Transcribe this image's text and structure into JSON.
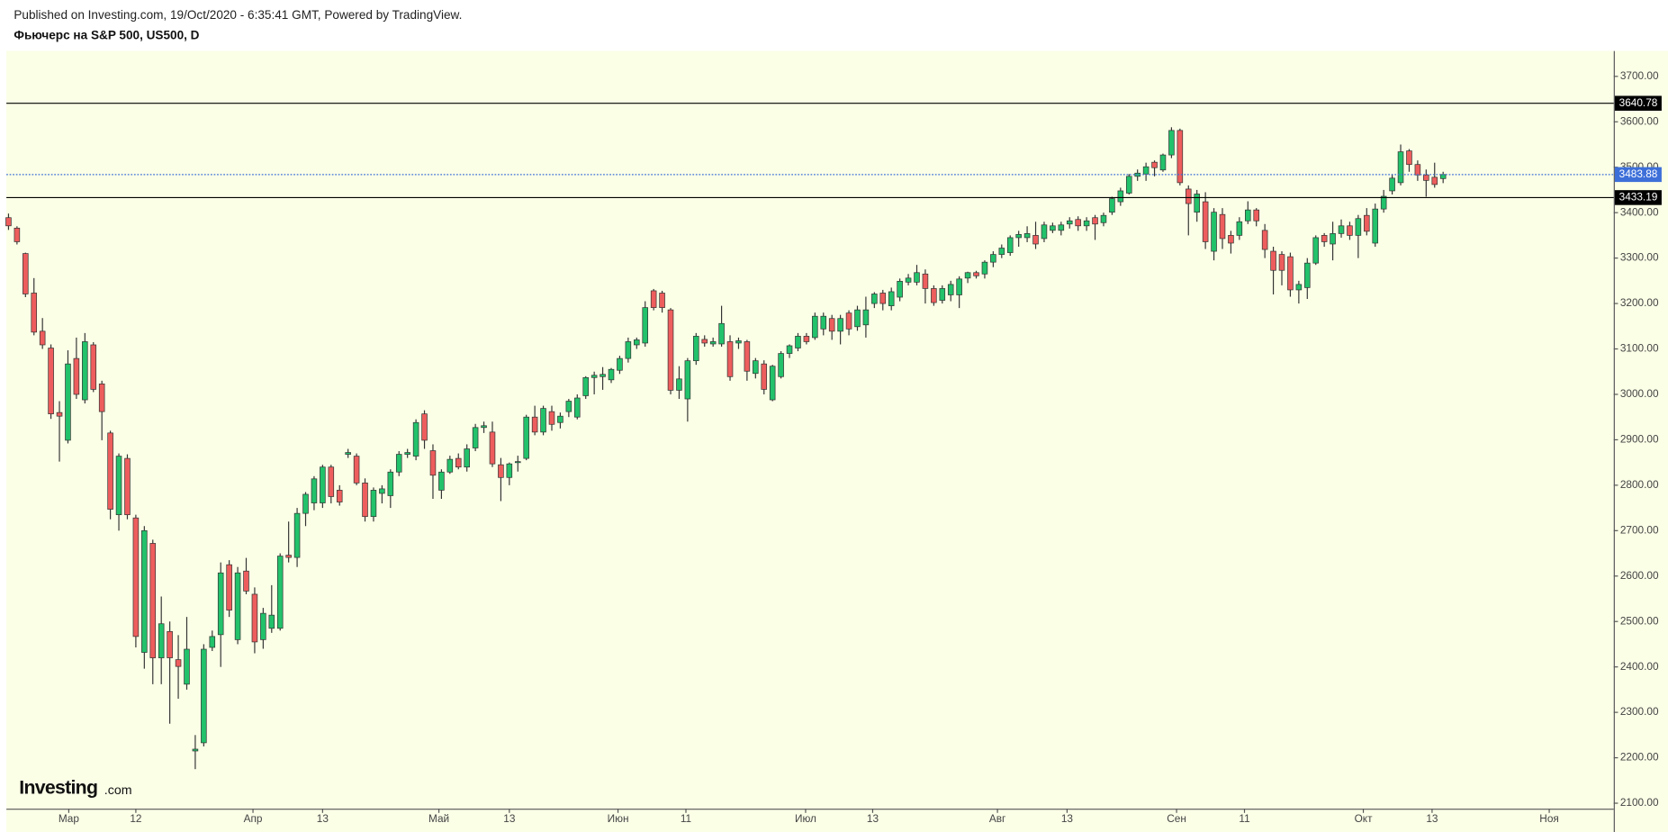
{
  "header": {
    "published": "Published on Investing.com, 19/Oct/2020 - 6:35:41 GMT, Powered by TradingView.",
    "symbol": "Фьючерс на S&P 500, US500, D"
  },
  "logo": {
    "name": "Investing",
    "suffix": ".com"
  },
  "chart_data": {
    "type": "candlestick",
    "up_color": "#22c26b",
    "down_color": "#ee5d5d",
    "ylim": [
      2088,
      3756
    ],
    "yticks": [
      {
        "value": 2100,
        "label": "2100.00"
      },
      {
        "value": 2200,
        "label": "2200.00"
      },
      {
        "value": 2300,
        "label": "2300.00"
      },
      {
        "value": 2400,
        "label": "2400.00"
      },
      {
        "value": 2500,
        "label": "2500.00"
      },
      {
        "value": 2600,
        "label": "2600.00"
      },
      {
        "value": 2700,
        "label": "2700.00"
      },
      {
        "value": 2800,
        "label": "2800.00"
      },
      {
        "value": 2900,
        "label": "2900.00"
      },
      {
        "value": 3000,
        "label": "3000.00"
      },
      {
        "value": 3100,
        "label": "3100.00"
      },
      {
        "value": 3200,
        "label": "3200.00"
      },
      {
        "value": 3300,
        "label": "3300.00"
      },
      {
        "value": 3400,
        "label": "3400.00"
      },
      {
        "value": 3500,
        "label": "3500.00"
      },
      {
        "value": 3600,
        "label": "3600.00"
      },
      {
        "value": 3700,
        "label": "3700.00"
      }
    ],
    "xlim": [
      -0.25,
      189.1
    ],
    "xticks": [
      {
        "value": 7.1,
        "label": "Мар"
      },
      {
        "value": 15,
        "label": "12"
      },
      {
        "value": 28.8,
        "label": "Апр"
      },
      {
        "value": 37,
        "label": "13"
      },
      {
        "value": 50.7,
        "label": "Май"
      },
      {
        "value": 59,
        "label": "13"
      },
      {
        "value": 71.8,
        "label": "Июн"
      },
      {
        "value": 79.8,
        "label": "11"
      },
      {
        "value": 93.9,
        "label": "Июл"
      },
      {
        "value": 101.8,
        "label": "13"
      },
      {
        "value": 116.5,
        "label": "Авг"
      },
      {
        "value": 124.7,
        "label": "13"
      },
      {
        "value": 137.6,
        "label": "Сен"
      },
      {
        "value": 145.6,
        "label": "11"
      },
      {
        "value": 159.6,
        "label": "Окт"
      },
      {
        "value": 167.7,
        "label": "13"
      },
      {
        "value": 181.5,
        "label": "Ноя"
      }
    ],
    "hlines": [
      {
        "value": 3640.78,
        "color": "#000000",
        "style": "solid"
      },
      {
        "value": 3433.19,
        "color": "#000000",
        "style": "solid"
      },
      {
        "value": 3483.88,
        "color": "#3d6fd9",
        "style": "dotted"
      }
    ],
    "ohlc": [
      [
        3389,
        3398,
        3362,
        3371
      ],
      [
        3366,
        3370,
        3330,
        3336
      ],
      [
        3310,
        3312,
        3214,
        3221
      ],
      [
        3223,
        3256,
        3130,
        3137
      ],
      [
        3139,
        3168,
        3100,
        3109
      ],
      [
        3102,
        3110,
        2946,
        2957
      ],
      [
        2960,
        2985,
        2852,
        2952
      ],
      [
        2899,
        3097,
        2892,
        3067
      ],
      [
        3079,
        3125,
        2990,
        3000
      ],
      [
        2988,
        3135,
        2980,
        3116
      ],
      [
        3109,
        3115,
        3005,
        3011
      ],
      [
        3023,
        3030,
        2899,
        2962
      ],
      [
        2915,
        2920,
        2725,
        2747
      ],
      [
        2735,
        2870,
        2700,
        2864
      ],
      [
        2859,
        2868,
        2725,
        2735
      ],
      [
        2728,
        2735,
        2443,
        2467
      ],
      [
        2432,
        2710,
        2396,
        2700
      ],
      [
        2672,
        2680,
        2362,
        2420
      ],
      [
        2420,
        2555,
        2362,
        2495
      ],
      [
        2478,
        2500,
        2275,
        2420
      ],
      [
        2416,
        2470,
        2330,
        2401
      ],
      [
        2362,
        2510,
        2350,
        2439
      ],
      [
        2215,
        2250,
        2175,
        2219
      ],
      [
        2233,
        2450,
        2225,
        2439
      ],
      [
        2443,
        2480,
        2435,
        2467
      ],
      [
        2471,
        2630,
        2400,
        2607
      ],
      [
        2625,
        2635,
        2510,
        2525
      ],
      [
        2460,
        2620,
        2450,
        2607
      ],
      [
        2611,
        2640,
        2560,
        2567
      ],
      [
        2560,
        2575,
        2430,
        2455
      ],
      [
        2460,
        2530,
        2440,
        2518
      ],
      [
        2485,
        2580,
        2475,
        2514
      ],
      [
        2485,
        2650,
        2480,
        2644
      ],
      [
        2646,
        2720,
        2630,
        2641
      ],
      [
        2641,
        2750,
        2620,
        2738
      ],
      [
        2738,
        2785,
        2710,
        2780
      ],
      [
        2761,
        2820,
        2745,
        2814
      ],
      [
        2761,
        2845,
        2750,
        2840
      ],
      [
        2840,
        2845,
        2760,
        2775
      ],
      [
        2789,
        2800,
        2755,
        2763
      ],
      [
        2868,
        2880,
        2860,
        2872
      ],
      [
        2864,
        2870,
        2800,
        2805
      ],
      [
        2805,
        2815,
        2720,
        2731
      ],
      [
        2731,
        2795,
        2720,
        2789
      ],
      [
        2782,
        2800,
        2760,
        2792
      ],
      [
        2777,
        2835,
        2750,
        2829
      ],
      [
        2829,
        2875,
        2820,
        2868
      ],
      [
        2868,
        2880,
        2860,
        2872
      ],
      [
        2864,
        2945,
        2855,
        2938
      ],
      [
        2957,
        2965,
        2880,
        2899
      ],
      [
        2876,
        2890,
        2770,
        2822
      ],
      [
        2789,
        2835,
        2770,
        2829
      ],
      [
        2829,
        2865,
        2825,
        2857
      ],
      [
        2859,
        2870,
        2835,
        2840
      ],
      [
        2840,
        2890,
        2830,
        2880
      ],
      [
        2882,
        2935,
        2875,
        2927
      ],
      [
        2927,
        2940,
        2915,
        2931
      ],
      [
        2917,
        2940,
        2840,
        2847
      ],
      [
        2845,
        2860,
        2765,
        2817
      ],
      [
        2817,
        2850,
        2800,
        2847
      ],
      [
        2850,
        2865,
        2830,
        2852
      ],
      [
        2859,
        2955,
        2855,
        2950
      ],
      [
        2950,
        2975,
        2910,
        2917
      ],
      [
        2917,
        2975,
        2910,
        2969
      ],
      [
        2962,
        2975,
        2920,
        2934
      ],
      [
        2938,
        2960,
        2925,
        2952
      ],
      [
        2962,
        2990,
        2950,
        2985
      ],
      [
        2950,
        3000,
        2945,
        2992
      ],
      [
        2997,
        3040,
        2990,
        3037
      ],
      [
        3037,
        3050,
        3000,
        3042
      ],
      [
        3039,
        3060,
        3010,
        3044
      ],
      [
        3032,
        3058,
        3025,
        3055
      ],
      [
        3053,
        3085,
        3045,
        3079
      ],
      [
        3079,
        3125,
        3070,
        3116
      ],
      [
        3109,
        3125,
        3100,
        3120
      ],
      [
        3113,
        3205,
        3105,
        3191
      ],
      [
        3228,
        3232,
        3185,
        3191
      ],
      [
        3223,
        3228,
        3180,
        3191
      ],
      [
        3186,
        3190,
        3000,
        3009
      ],
      [
        3009,
        3062,
        2990,
        3034
      ],
      [
        2990,
        3080,
        2940,
        3074
      ],
      [
        3074,
        3135,
        3065,
        3128
      ],
      [
        3121,
        3130,
        3105,
        3113
      ],
      [
        3111,
        3125,
        3105,
        3116
      ],
      [
        3111,
        3195,
        3105,
        3156
      ],
      [
        3116,
        3130,
        3030,
        3039
      ],
      [
        3113,
        3125,
        3100,
        3118
      ],
      [
        3116,
        3120,
        3030,
        3051
      ],
      [
        3046,
        3080,
        3035,
        3074
      ],
      [
        3067,
        3075,
        3000,
        3011
      ],
      [
        2988,
        3065,
        2985,
        3062
      ],
      [
        3039,
        3095,
        3035,
        3090
      ],
      [
        3090,
        3110,
        3080,
        3107
      ],
      [
        3102,
        3135,
        3095,
        3128
      ],
      [
        3128,
        3135,
        3110,
        3116
      ],
      [
        3125,
        3180,
        3120,
        3172
      ],
      [
        3144,
        3180,
        3130,
        3172
      ],
      [
        3167,
        3175,
        3120,
        3139
      ],
      [
        3139,
        3175,
        3110,
        3167
      ],
      [
        3179,
        3185,
        3130,
        3144
      ],
      [
        3149,
        3195,
        3140,
        3186
      ],
      [
        3153,
        3215,
        3125,
        3186
      ],
      [
        3200,
        3225,
        3190,
        3221
      ],
      [
        3223,
        3230,
        3185,
        3200
      ],
      [
        3195,
        3235,
        3185,
        3226
      ],
      [
        3214,
        3255,
        3205,
        3249
      ],
      [
        3247,
        3265,
        3240,
        3256
      ],
      [
        3247,
        3285,
        3240,
        3268
      ],
      [
        3265,
        3275,
        3200,
        3233
      ],
      [
        3233,
        3240,
        3195,
        3202
      ],
      [
        3207,
        3240,
        3200,
        3233
      ],
      [
        3219,
        3250,
        3205,
        3242
      ],
      [
        3219,
        3260,
        3190,
        3254
      ],
      [
        3256,
        3270,
        3245,
        3268
      ],
      [
        3268,
        3272,
        3255,
        3261
      ],
      [
        3265,
        3295,
        3255,
        3291
      ],
      [
        3291,
        3315,
        3280,
        3308
      ],
      [
        3308,
        3330,
        3300,
        3322
      ],
      [
        3312,
        3350,
        3305,
        3345
      ],
      [
        3345,
        3360,
        3325,
        3352
      ],
      [
        3345,
        3370,
        3335,
        3354
      ],
      [
        3350,
        3380,
        3320,
        3331
      ],
      [
        3343,
        3380,
        3335,
        3373
      ],
      [
        3361,
        3378,
        3355,
        3371
      ],
      [
        3361,
        3380,
        3350,
        3373
      ],
      [
        3375,
        3390,
        3365,
        3382
      ],
      [
        3385,
        3392,
        3360,
        3371
      ],
      [
        3371,
        3390,
        3360,
        3382
      ],
      [
        3389,
        3395,
        3340,
        3375
      ],
      [
        3378,
        3400,
        3370,
        3394
      ],
      [
        3401,
        3435,
        3395,
        3431
      ],
      [
        3424,
        3455,
        3415,
        3448
      ],
      [
        3443,
        3485,
        3440,
        3480
      ],
      [
        3480,
        3495,
        3470,
        3487
      ],
      [
        3485,
        3510,
        3470,
        3501
      ],
      [
        3511,
        3515,
        3480,
        3499
      ],
      [
        3494,
        3530,
        3490,
        3527
      ],
      [
        3527,
        3588,
        3520,
        3581
      ],
      [
        3581,
        3585,
        3460,
        3466
      ],
      [
        3452,
        3460,
        3350,
        3420
      ],
      [
        3401,
        3450,
        3380,
        3441
      ],
      [
        3424,
        3445,
        3320,
        3336
      ],
      [
        3315,
        3410,
        3295,
        3401
      ],
      [
        3396,
        3410,
        3320,
        3343
      ],
      [
        3350,
        3360,
        3310,
        3333
      ],
      [
        3350,
        3390,
        3340,
        3380
      ],
      [
        3382,
        3425,
        3375,
        3406
      ],
      [
        3406,
        3410,
        3370,
        3382
      ],
      [
        3361,
        3375,
        3300,
        3319
      ],
      [
        3315,
        3325,
        3220,
        3273
      ],
      [
        3308,
        3315,
        3240,
        3273
      ],
      [
        3303,
        3312,
        3215,
        3230
      ],
      [
        3230,
        3250,
        3200,
        3242
      ],
      [
        3235,
        3300,
        3210,
        3289
      ],
      [
        3289,
        3350,
        3285,
        3345
      ],
      [
        3350,
        3355,
        3325,
        3336
      ],
      [
        3331,
        3380,
        3295,
        3354
      ],
      [
        3354,
        3385,
        3345,
        3371
      ],
      [
        3371,
        3380,
        3340,
        3350
      ],
      [
        3350,
        3395,
        3300,
        3387
      ],
      [
        3394,
        3410,
        3350,
        3359
      ],
      [
        3333,
        3420,
        3325,
        3408
      ],
      [
        3408,
        3450,
        3400,
        3436
      ],
      [
        3448,
        3485,
        3440,
        3476
      ],
      [
        3466,
        3550,
        3460,
        3534
      ],
      [
        3536,
        3540,
        3490,
        3506
      ],
      [
        3506,
        3515,
        3470,
        3483
      ],
      [
        3483,
        3495,
        3435,
        3471
      ],
      [
        3478,
        3510,
        3455,
        3462
      ],
      [
        3475,
        3490,
        3465,
        3484
      ]
    ]
  }
}
